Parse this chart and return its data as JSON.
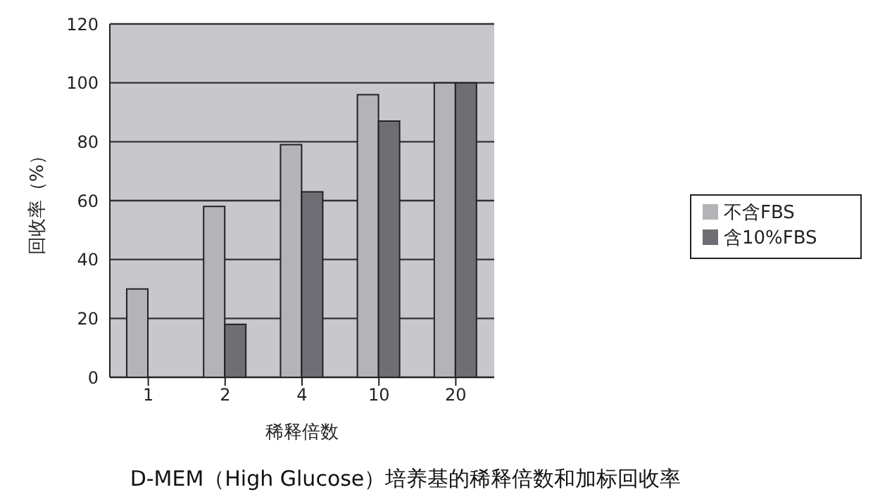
{
  "chart_data": {
    "type": "bar",
    "title": "D-MEM（High Glucose）培养基的稀释倍数和加标回收率",
    "xlabel": "稀释倍数",
    "ylabel": "回收率（%）",
    "categories": [
      "1",
      "2",
      "4",
      "10",
      "20"
    ],
    "series": [
      {
        "name": "不含FBS",
        "color": "#b4b4b8",
        "values": [
          30,
          58,
          79,
          96,
          100
        ]
      },
      {
        "name": "含10%FBS",
        "color": "#6e6e74",
        "values": [
          null,
          18,
          63,
          87,
          100
        ]
      }
    ],
    "ylim": [
      0,
      120
    ],
    "yticks": [
      0,
      20,
      40,
      60,
      80,
      100,
      120
    ],
    "grid": "y",
    "legend": "right"
  }
}
